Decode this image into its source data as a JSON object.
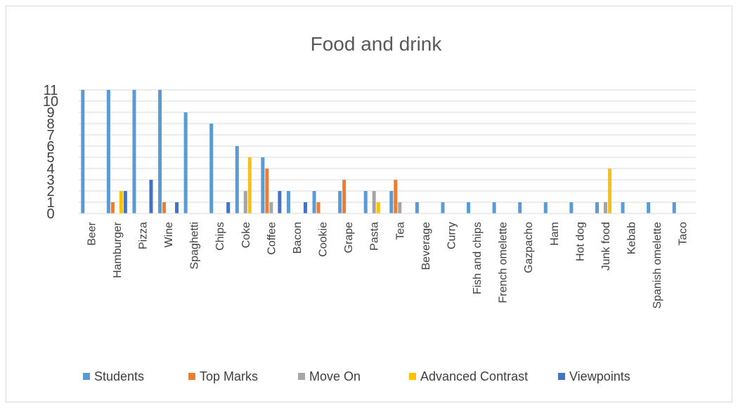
{
  "chart_data": {
    "type": "bar",
    "title": "Food and drink",
    "xlabel": "",
    "ylabel": "",
    "ylim": [
      0,
      11
    ],
    "yticks": [
      0,
      1,
      2,
      3,
      4,
      5,
      6,
      7,
      8,
      9,
      10,
      11
    ],
    "grid": true,
    "legend_position": "bottom",
    "categories": [
      "Beer",
      "Hamburger",
      "Pizza",
      "Wine",
      "Spaghetti",
      "Chips",
      "Coke",
      "Coffee",
      "Bacon",
      "Cookie",
      "Grape",
      "Pasta",
      "Tea",
      "Beverage",
      "Curry",
      "Fish and chips",
      "French omelette",
      "Gazpacho",
      "Ham",
      "Hot dog",
      "Junk food",
      "Kebab",
      "Spanish omelette",
      "Taco"
    ],
    "series": [
      {
        "name": "Students",
        "color": "#5B9BD5",
        "values": [
          11,
          11,
          11,
          11,
          9,
          8,
          6,
          5,
          2,
          2,
          2,
          2,
          2,
          1,
          1,
          1,
          1,
          1,
          1,
          1,
          1,
          1,
          1,
          1
        ]
      },
      {
        "name": "Top Marks",
        "color": "#ED7D31",
        "values": [
          0,
          1,
          0,
          1,
          0,
          0,
          0,
          4,
          0,
          1,
          3,
          0,
          3,
          0,
          0,
          0,
          0,
          0,
          0,
          0,
          0,
          0,
          0,
          0
        ]
      },
      {
        "name": "Move On",
        "color": "#A5A5A5",
        "values": [
          0,
          0,
          0,
          0,
          0,
          0,
          2,
          1,
          0,
          0,
          0,
          2,
          1,
          0,
          0,
          0,
          0,
          0,
          0,
          0,
          1,
          0,
          0,
          0
        ]
      },
      {
        "name": "Advanced Contrast",
        "color": "#FFC000",
        "values": [
          0,
          2,
          0,
          0,
          0,
          0,
          5,
          0,
          0,
          0,
          0,
          1,
          0,
          0,
          0,
          0,
          0,
          0,
          0,
          0,
          4,
          0,
          0,
          0
        ]
      },
      {
        "name": "Viewpoints",
        "color": "#4472C4",
        "values": [
          0,
          2,
          3,
          1,
          0,
          1,
          0,
          2,
          1,
          0,
          0,
          0,
          0,
          0,
          0,
          0,
          0,
          0,
          0,
          0,
          0,
          0,
          0,
          0
        ]
      }
    ]
  }
}
